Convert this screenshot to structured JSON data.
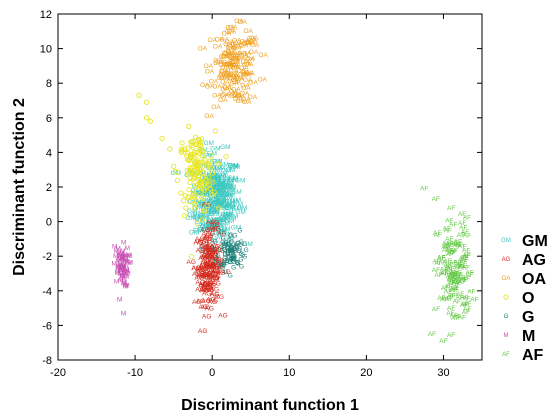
{
  "chart_data": {
    "type": "scatter",
    "title": "",
    "xlabel": "Discriminant function 1",
    "ylabel": "Discriminant function 2",
    "xlim": [
      -20,
      35
    ],
    "ylim": [
      -8,
      12
    ],
    "xticks": [
      -20,
      -10,
      0,
      10,
      20,
      30
    ],
    "yticks": [
      -8,
      -6,
      -4,
      -2,
      0,
      2,
      4,
      6,
      8,
      10,
      12
    ],
    "grid": false,
    "legend_position": "right",
    "series": [
      {
        "name": "GM",
        "marker": "GM",
        "color": "#3cc8c0",
        "center": [
          0.5,
          1.3
        ],
        "spread": [
          1.5,
          1.3
        ],
        "n": 220,
        "points": [
          [
            -1.5,
            2.8
          ],
          [
            -0.5,
            2.5
          ],
          [
            1.0,
            3.1
          ],
          [
            2.0,
            2.0
          ],
          [
            -1.8,
            0.5
          ],
          [
            0.2,
            -0.4
          ],
          [
            1.5,
            0.2
          ],
          [
            0.8,
            2.2
          ],
          [
            -0.9,
            1.2
          ],
          [
            2.3,
            0.8
          ]
        ]
      },
      {
        "name": "AG",
        "marker": "AG",
        "color": "#d42a1e",
        "center": [
          -0.4,
          -2.6
        ],
        "spread": [
          0.8,
          1.1
        ],
        "n": 150,
        "points": [
          [
            -1.8,
            -1.2
          ],
          [
            0.5,
            -0.4
          ],
          [
            -1.2,
            -3.6
          ],
          [
            0.3,
            -4.2
          ],
          [
            -0.8,
            -4.6
          ],
          [
            -0.4,
            -2.0
          ],
          [
            -1.5,
            -2.8
          ],
          [
            0.6,
            -2.2
          ]
        ]
      },
      {
        "name": "OA",
        "marker": "OA",
        "color": "#f0a020",
        "center": [
          3.0,
          8.9
        ],
        "spread": [
          1.5,
          1.1
        ],
        "n": 130,
        "points": [
          [
            0.0,
            10.5
          ],
          [
            2.5,
            11.0
          ],
          [
            5.5,
            10.2
          ],
          [
            0.6,
            7.3
          ],
          [
            4.2,
            7.4
          ],
          [
            6.5,
            8.2
          ],
          [
            -0.5,
            9.0
          ],
          [
            3.0,
            8.9
          ]
        ]
      },
      {
        "name": "O",
        "marker": "o",
        "color": "#e6e62a",
        "center": [
          -2.0,
          2.8
        ],
        "spread": [
          1.2,
          1.2
        ],
        "n": 140,
        "points": [
          [
            -9.5,
            7.3
          ],
          [
            -8.5,
            6.9
          ],
          [
            -8.5,
            6.0
          ],
          [
            -8.0,
            5.8
          ],
          [
            -6.5,
            4.8
          ],
          [
            -5.5,
            4.2
          ],
          [
            -4.0,
            4.0
          ],
          [
            -5.0,
            3.2
          ],
          [
            -3.5,
            1.5
          ],
          [
            -1.0,
            1.8
          ],
          [
            -2.0,
            2.8
          ]
        ]
      },
      {
        "name": "G",
        "marker": "G",
        "color": "#1e8078",
        "center": [
          2.5,
          -1.7
        ],
        "spread": [
          0.8,
          0.5
        ],
        "n": 90,
        "points": [
          [
            1.2,
            -0.6
          ],
          [
            3.6,
            -0.5
          ],
          [
            3.8,
            -2.6
          ],
          [
            1.8,
            -2.9
          ],
          [
            2.5,
            -1.7
          ],
          [
            1.5,
            -1.5
          ]
        ]
      },
      {
        "name": "M",
        "marker": "M",
        "color": "#c850b4",
        "center": [
          -11.8,
          -2.6
        ],
        "spread": [
          0.5,
          0.6
        ],
        "n": 70,
        "points": [
          [
            -12.5,
            -2.0
          ],
          [
            -11.0,
            -2.0
          ],
          [
            -11.5,
            -3.6
          ],
          [
            -12.0,
            -4.5
          ],
          [
            -11.5,
            -5.3
          ],
          [
            -11.8,
            -2.6
          ]
        ]
      },
      {
        "name": "AF",
        "marker": "AF",
        "color": "#64c846",
        "center": [
          31.5,
          -3.0
        ],
        "spread": [
          1.1,
          1.6
        ],
        "n": 120,
        "points": [
          [
            27.5,
            1.9
          ],
          [
            29.0,
            1.3
          ],
          [
            31.0,
            0.8
          ],
          [
            32.8,
            -0.6
          ],
          [
            30.0,
            -6.9
          ],
          [
            28.5,
            -6.5
          ],
          [
            31.0,
            -5.0
          ],
          [
            33.0,
            -2.0
          ],
          [
            31.5,
            -3.0
          ]
        ]
      }
    ]
  }
}
